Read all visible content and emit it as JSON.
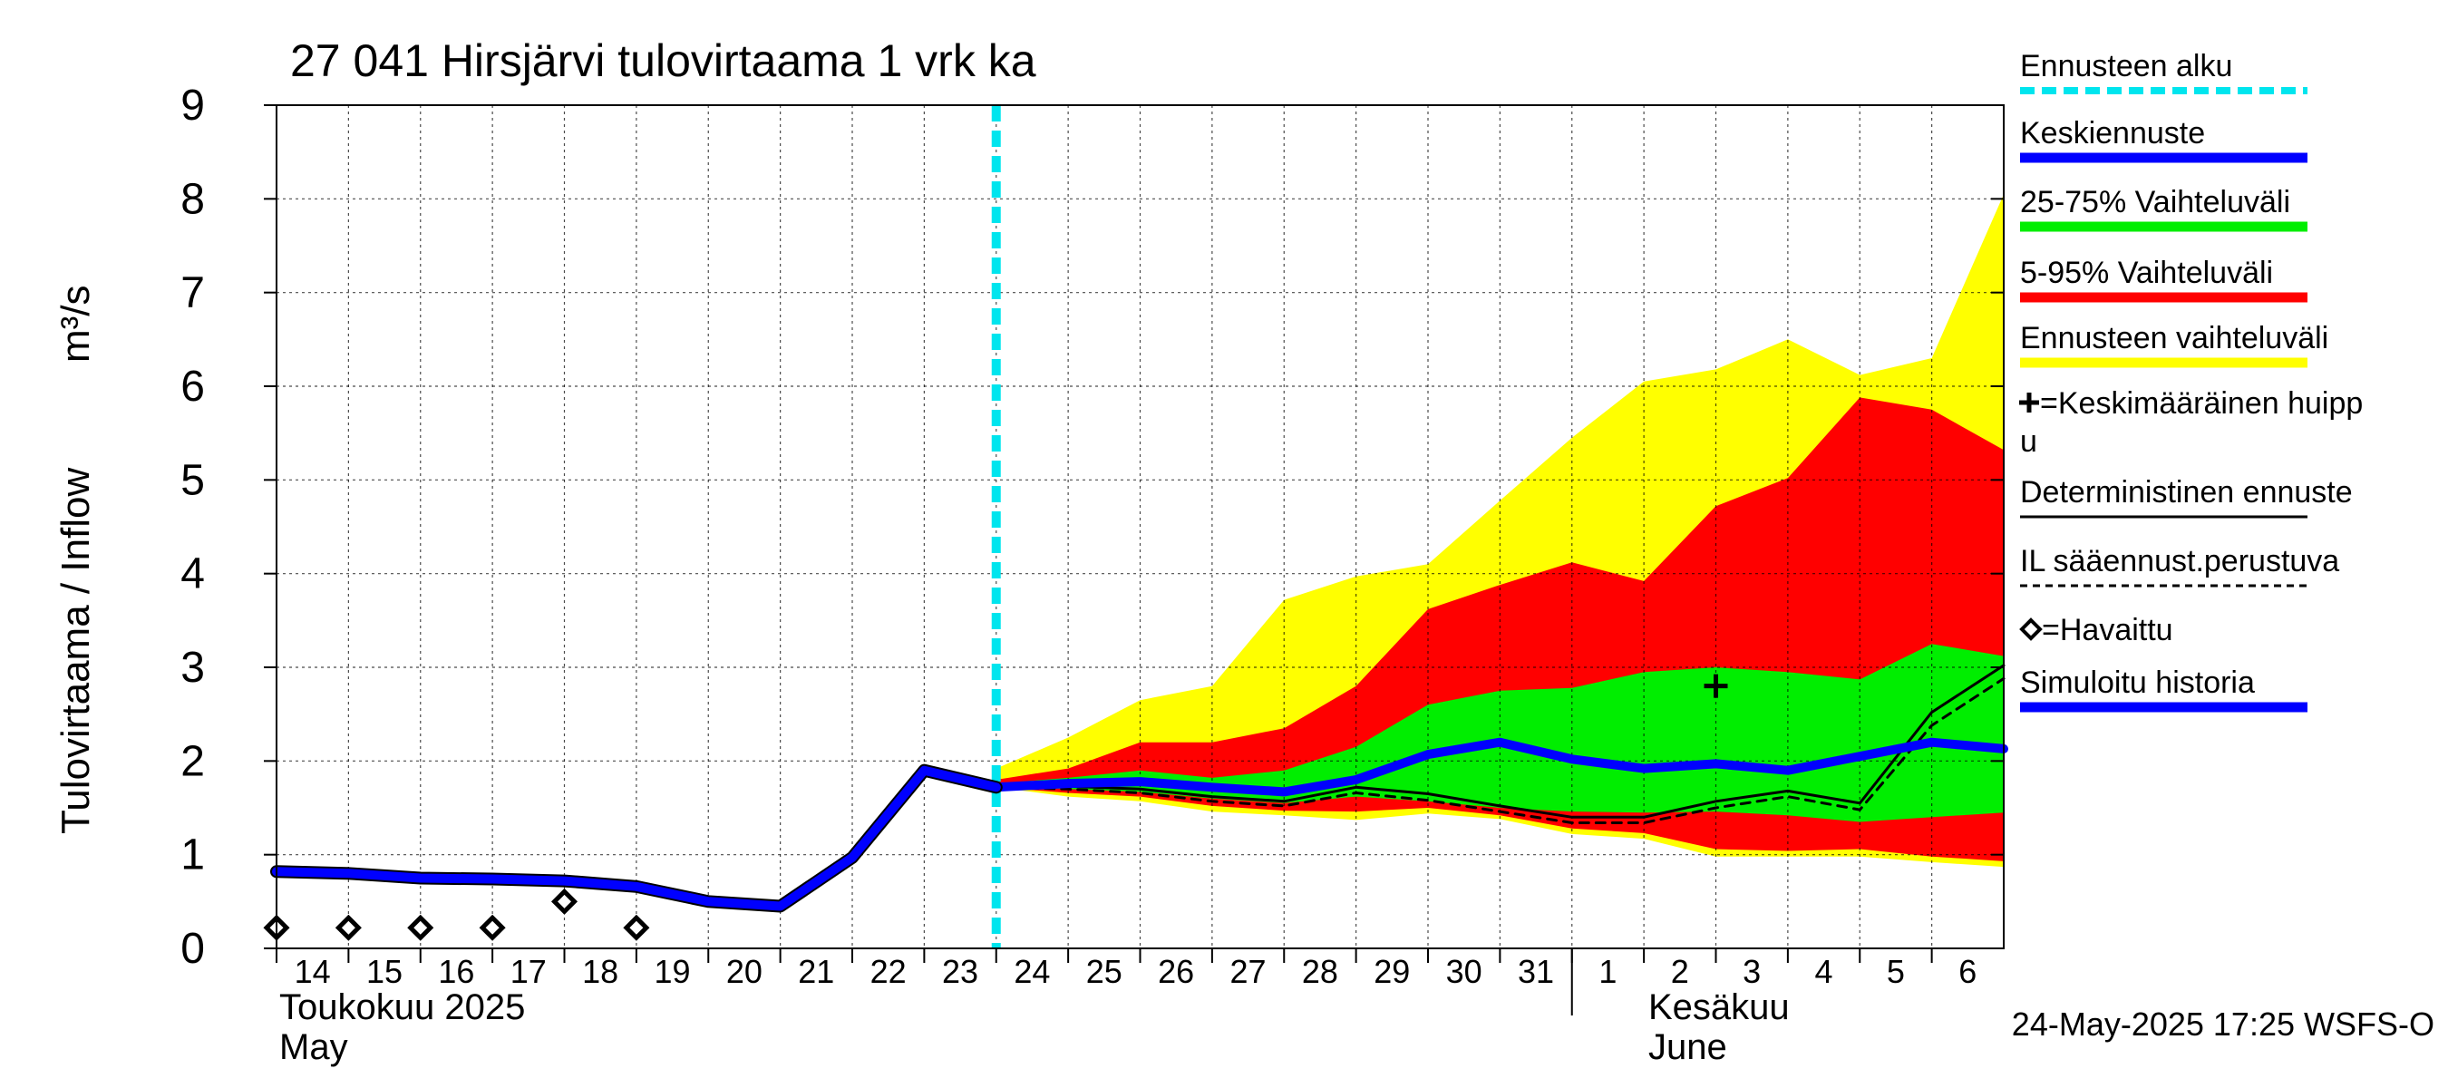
{
  "chart_data": {
    "type": "area",
    "title": "27 041 Hirsjärvi tulovirtaama 1 vrk ka",
    "ylabel": "Tulovirtaama / Inflow",
    "yunit": "m³/s",
    "ylim": [
      0,
      9
    ],
    "yticks": [
      "0",
      "1",
      "2",
      "3",
      "4",
      "5",
      "6",
      "7",
      "8",
      "9"
    ],
    "grid": true,
    "legend_position": "right",
    "x_day_labels": [
      "14",
      "15",
      "16",
      "17",
      "18",
      "19",
      "20",
      "21",
      "22",
      "23",
      "24",
      "25",
      "26",
      "27",
      "28",
      "29",
      "30",
      "31",
      "1",
      "2",
      "3",
      "4",
      "5",
      "6"
    ],
    "month_labels": [
      {
        "line1": "Toukokuu  2025",
        "line2": "May"
      },
      {
        "line1": "Kesäkuu",
        "line2": "June"
      }
    ],
    "x_range": [
      "2025-05-14",
      "2025-06-07"
    ],
    "forecast_start": "2025-05-24",
    "timestamp": "24-May-2025 17:25 WSFS-O",
    "series": {
      "simulated_history": {
        "name": "Simuloitu historia",
        "color": "#0000ff",
        "x": [
          "2025-05-14",
          "2025-05-15",
          "2025-05-16",
          "2025-05-17",
          "2025-05-18",
          "2025-05-19",
          "2025-05-20",
          "2025-05-21",
          "2025-05-22",
          "2025-05-23",
          "2025-05-24"
        ],
        "y": [
          0.82,
          0.8,
          0.75,
          0.74,
          0.72,
          0.66,
          0.5,
          0.45,
          0.97,
          1.9,
          1.72
        ]
      },
      "observed": {
        "name": "=Havaittu",
        "x": [
          "2025-05-14",
          "2025-05-15",
          "2025-05-16",
          "2025-05-17",
          "2025-05-18",
          "2025-05-19"
        ],
        "y": [
          0.22,
          0.22,
          0.22,
          0.22,
          0.5,
          0.22
        ]
      },
      "forecast_dates": [
        "2025-05-24",
        "2025-05-25",
        "2025-05-26",
        "2025-05-27",
        "2025-05-28",
        "2025-05-29",
        "2025-05-30",
        "2025-05-31",
        "2025-06-01",
        "2025-06-02",
        "2025-06-03",
        "2025-06-04",
        "2025-06-05",
        "2025-06-06",
        "2025-06-07"
      ],
      "ensemble_range": {
        "name": "Ennusteen vaihteluväli",
        "color": "#ffff00",
        "upper": [
          1.92,
          2.25,
          2.65,
          2.8,
          3.72,
          3.97,
          4.1,
          4.78,
          5.45,
          6.05,
          6.18,
          6.5,
          6.12,
          6.3,
          8.05
        ],
        "lower": [
          1.72,
          1.62,
          1.57,
          1.46,
          1.42,
          1.37,
          1.44,
          1.38,
          1.22,
          1.17,
          0.98,
          0.98,
          0.98,
          0.92,
          0.87
        ]
      },
      "p5_95": {
        "name": "5-95% Vaihteluväli",
        "color": "#ff0000",
        "upper": [
          1.8,
          1.92,
          2.2,
          2.2,
          2.35,
          2.8,
          3.62,
          3.88,
          4.12,
          3.92,
          4.72,
          5.02,
          5.88,
          5.75,
          5.32
        ],
        "lower": [
          1.72,
          1.66,
          1.62,
          1.52,
          1.47,
          1.46,
          1.5,
          1.42,
          1.28,
          1.23,
          1.06,
          1.04,
          1.06,
          0.98,
          0.93
        ]
      },
      "p25_75": {
        "name": "25-75% Vaihteluväli",
        "color": "#00ee00",
        "upper": [
          1.76,
          1.82,
          1.9,
          1.82,
          1.9,
          2.15,
          2.6,
          2.75,
          2.78,
          2.95,
          3.0,
          2.95,
          2.87,
          3.25,
          3.12
        ],
        "lower": [
          1.73,
          1.7,
          1.67,
          1.6,
          1.55,
          1.62,
          1.57,
          1.5,
          1.46,
          1.45,
          1.46,
          1.42,
          1.35,
          1.4,
          1.45
        ]
      },
      "median": {
        "name": "Keskiennuste",
        "color": "#0000ff",
        "y": [
          1.72,
          1.76,
          1.78,
          1.72,
          1.67,
          1.8,
          2.07,
          2.2,
          2.02,
          1.92,
          1.97,
          1.9,
          2.05,
          2.2,
          2.13
        ]
      },
      "deterministic": {
        "name": "Deterministinen ennuste",
        "color": "#000000",
        "y": [
          1.72,
          1.73,
          1.7,
          1.62,
          1.57,
          1.72,
          1.65,
          1.52,
          1.4,
          1.4,
          1.57,
          1.68,
          1.55,
          2.52,
          3.02
        ]
      },
      "il_weather": {
        "name": "IL sääennust.perustuva",
        "color": "#000000",
        "y": [
          1.72,
          1.7,
          1.66,
          1.57,
          1.52,
          1.66,
          1.58,
          1.46,
          1.34,
          1.34,
          1.5,
          1.62,
          1.48,
          2.38,
          2.88
        ]
      },
      "mean_peak": {
        "name": "=Keskimääräinen huippu",
        "x": "2025-06-03",
        "y": 2.8
      }
    },
    "legend": [
      {
        "key": "forecast_start",
        "label": "Ennusteen alku",
        "color": "#00e5ee",
        "style": "dashed"
      },
      {
        "key": "median",
        "label": "Keskiennuste",
        "color": "#0000ff",
        "style": "thick"
      },
      {
        "key": "p25_75",
        "label": "25-75% Vaihteluväli",
        "color": "#00ee00",
        "style": "thick"
      },
      {
        "key": "p5_95",
        "label": "5-95% Vaihteluväli",
        "color": "#ff0000",
        "style": "thick"
      },
      {
        "key": "ensemble_range",
        "label": "Ennusteen vaihteluväli",
        "color": "#ffff00",
        "style": "thick"
      },
      {
        "key": "mean_peak",
        "label": "=Keskimääräinen huipp",
        "label2": "u",
        "color": "#000000",
        "style": "marker-plus"
      },
      {
        "key": "deterministic",
        "label": "Deterministinen ennuste",
        "color": "#000000",
        "style": "thin"
      },
      {
        "key": "il_weather",
        "label": "IL sääennust.perustuva",
        "color": "#000000",
        "style": "dashed-thin"
      },
      {
        "key": "observed",
        "label": "=Havaittu",
        "color": "#000000",
        "style": "marker-diamond"
      },
      {
        "key": "simulated_history",
        "label": "Simuloitu historia",
        "color": "#0000ff",
        "style": "thick"
      }
    ]
  }
}
